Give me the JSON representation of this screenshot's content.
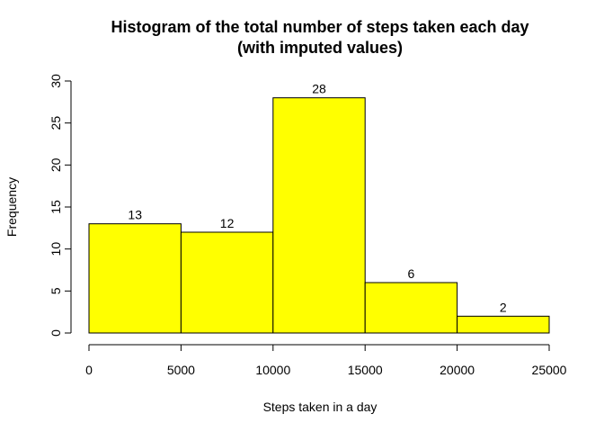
{
  "chart_data": {
    "type": "bar",
    "title": "Histogram of the total number of steps taken each day",
    "subtitle": "(with imputed values)",
    "xlabel": "Steps taken in a day",
    "ylabel": "Frequency",
    "bins": [
      {
        "start": 0,
        "end": 5000,
        "count": 13
      },
      {
        "start": 5000,
        "end": 10000,
        "count": 12
      },
      {
        "start": 10000,
        "end": 15000,
        "count": 28
      },
      {
        "start": 15000,
        "end": 20000,
        "count": 6
      },
      {
        "start": 20000,
        "end": 25000,
        "count": 2
      }
    ],
    "xlim": [
      0,
      25000
    ],
    "ylim": [
      0,
      30
    ],
    "xticks": [
      0,
      5000,
      10000,
      15000,
      20000,
      25000
    ],
    "yticks": [
      0,
      5,
      10,
      15,
      20,
      25,
      30
    ],
    "bar_color": "#ffff00",
    "grid": false,
    "legend": "none"
  }
}
